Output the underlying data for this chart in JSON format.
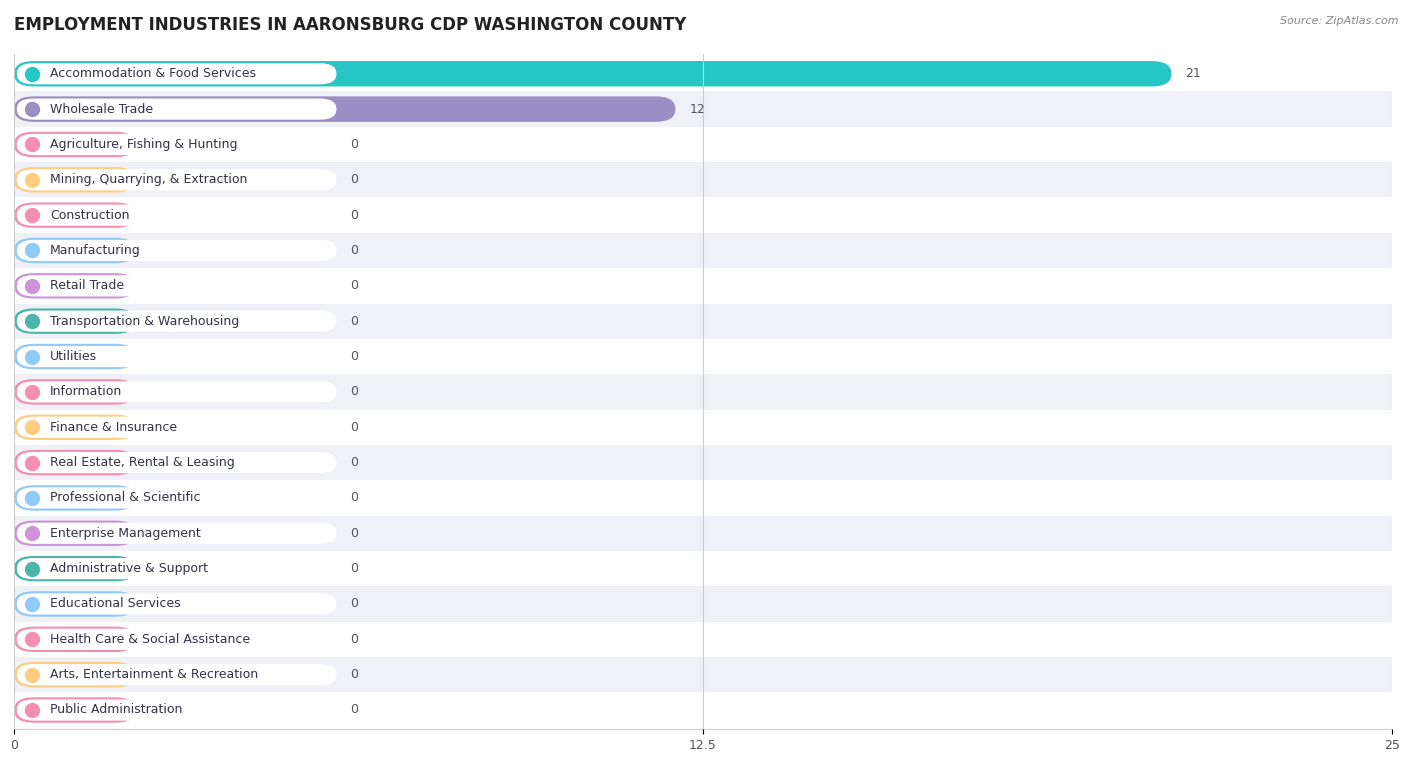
{
  "title": "EMPLOYMENT INDUSTRIES IN AARONSBURG CDP WASHINGTON COUNTY",
  "source": "Source: ZipAtlas.com",
  "categories": [
    "Accommodation & Food Services",
    "Wholesale Trade",
    "Agriculture, Fishing & Hunting",
    "Mining, Quarrying, & Extraction",
    "Construction",
    "Manufacturing",
    "Retail Trade",
    "Transportation & Warehousing",
    "Utilities",
    "Information",
    "Finance & Insurance",
    "Real Estate, Rental & Leasing",
    "Professional & Scientific",
    "Enterprise Management",
    "Administrative & Support",
    "Educational Services",
    "Health Care & Social Assistance",
    "Arts, Entertainment & Recreation",
    "Public Administration"
  ],
  "values": [
    21,
    12,
    0,
    0,
    0,
    0,
    0,
    0,
    0,
    0,
    0,
    0,
    0,
    0,
    0,
    0,
    0,
    0,
    0
  ],
  "bar_colors": [
    "#26C6C6",
    "#9B8EC4",
    "#F48FB1",
    "#FFCC80",
    "#F48FB1",
    "#90CAF9",
    "#CE93D8",
    "#4DB6AC",
    "#90CAF9",
    "#F48FB1",
    "#FFCC80",
    "#F48FB1",
    "#90CAF9",
    "#CE93D8",
    "#4DB6AC",
    "#90CAF9",
    "#F48FB1",
    "#FFCC80",
    "#F48FB1"
  ],
  "row_colors": [
    "#ffffff",
    "#f0f0f5"
  ],
  "xlim": [
    0,
    25
  ],
  "xticks": [
    0,
    12.5,
    25
  ],
  "background_color": "#f5f5f5",
  "bar_height": 0.72,
  "title_fontsize": 12,
  "label_fontsize": 9,
  "value_fontsize": 9
}
